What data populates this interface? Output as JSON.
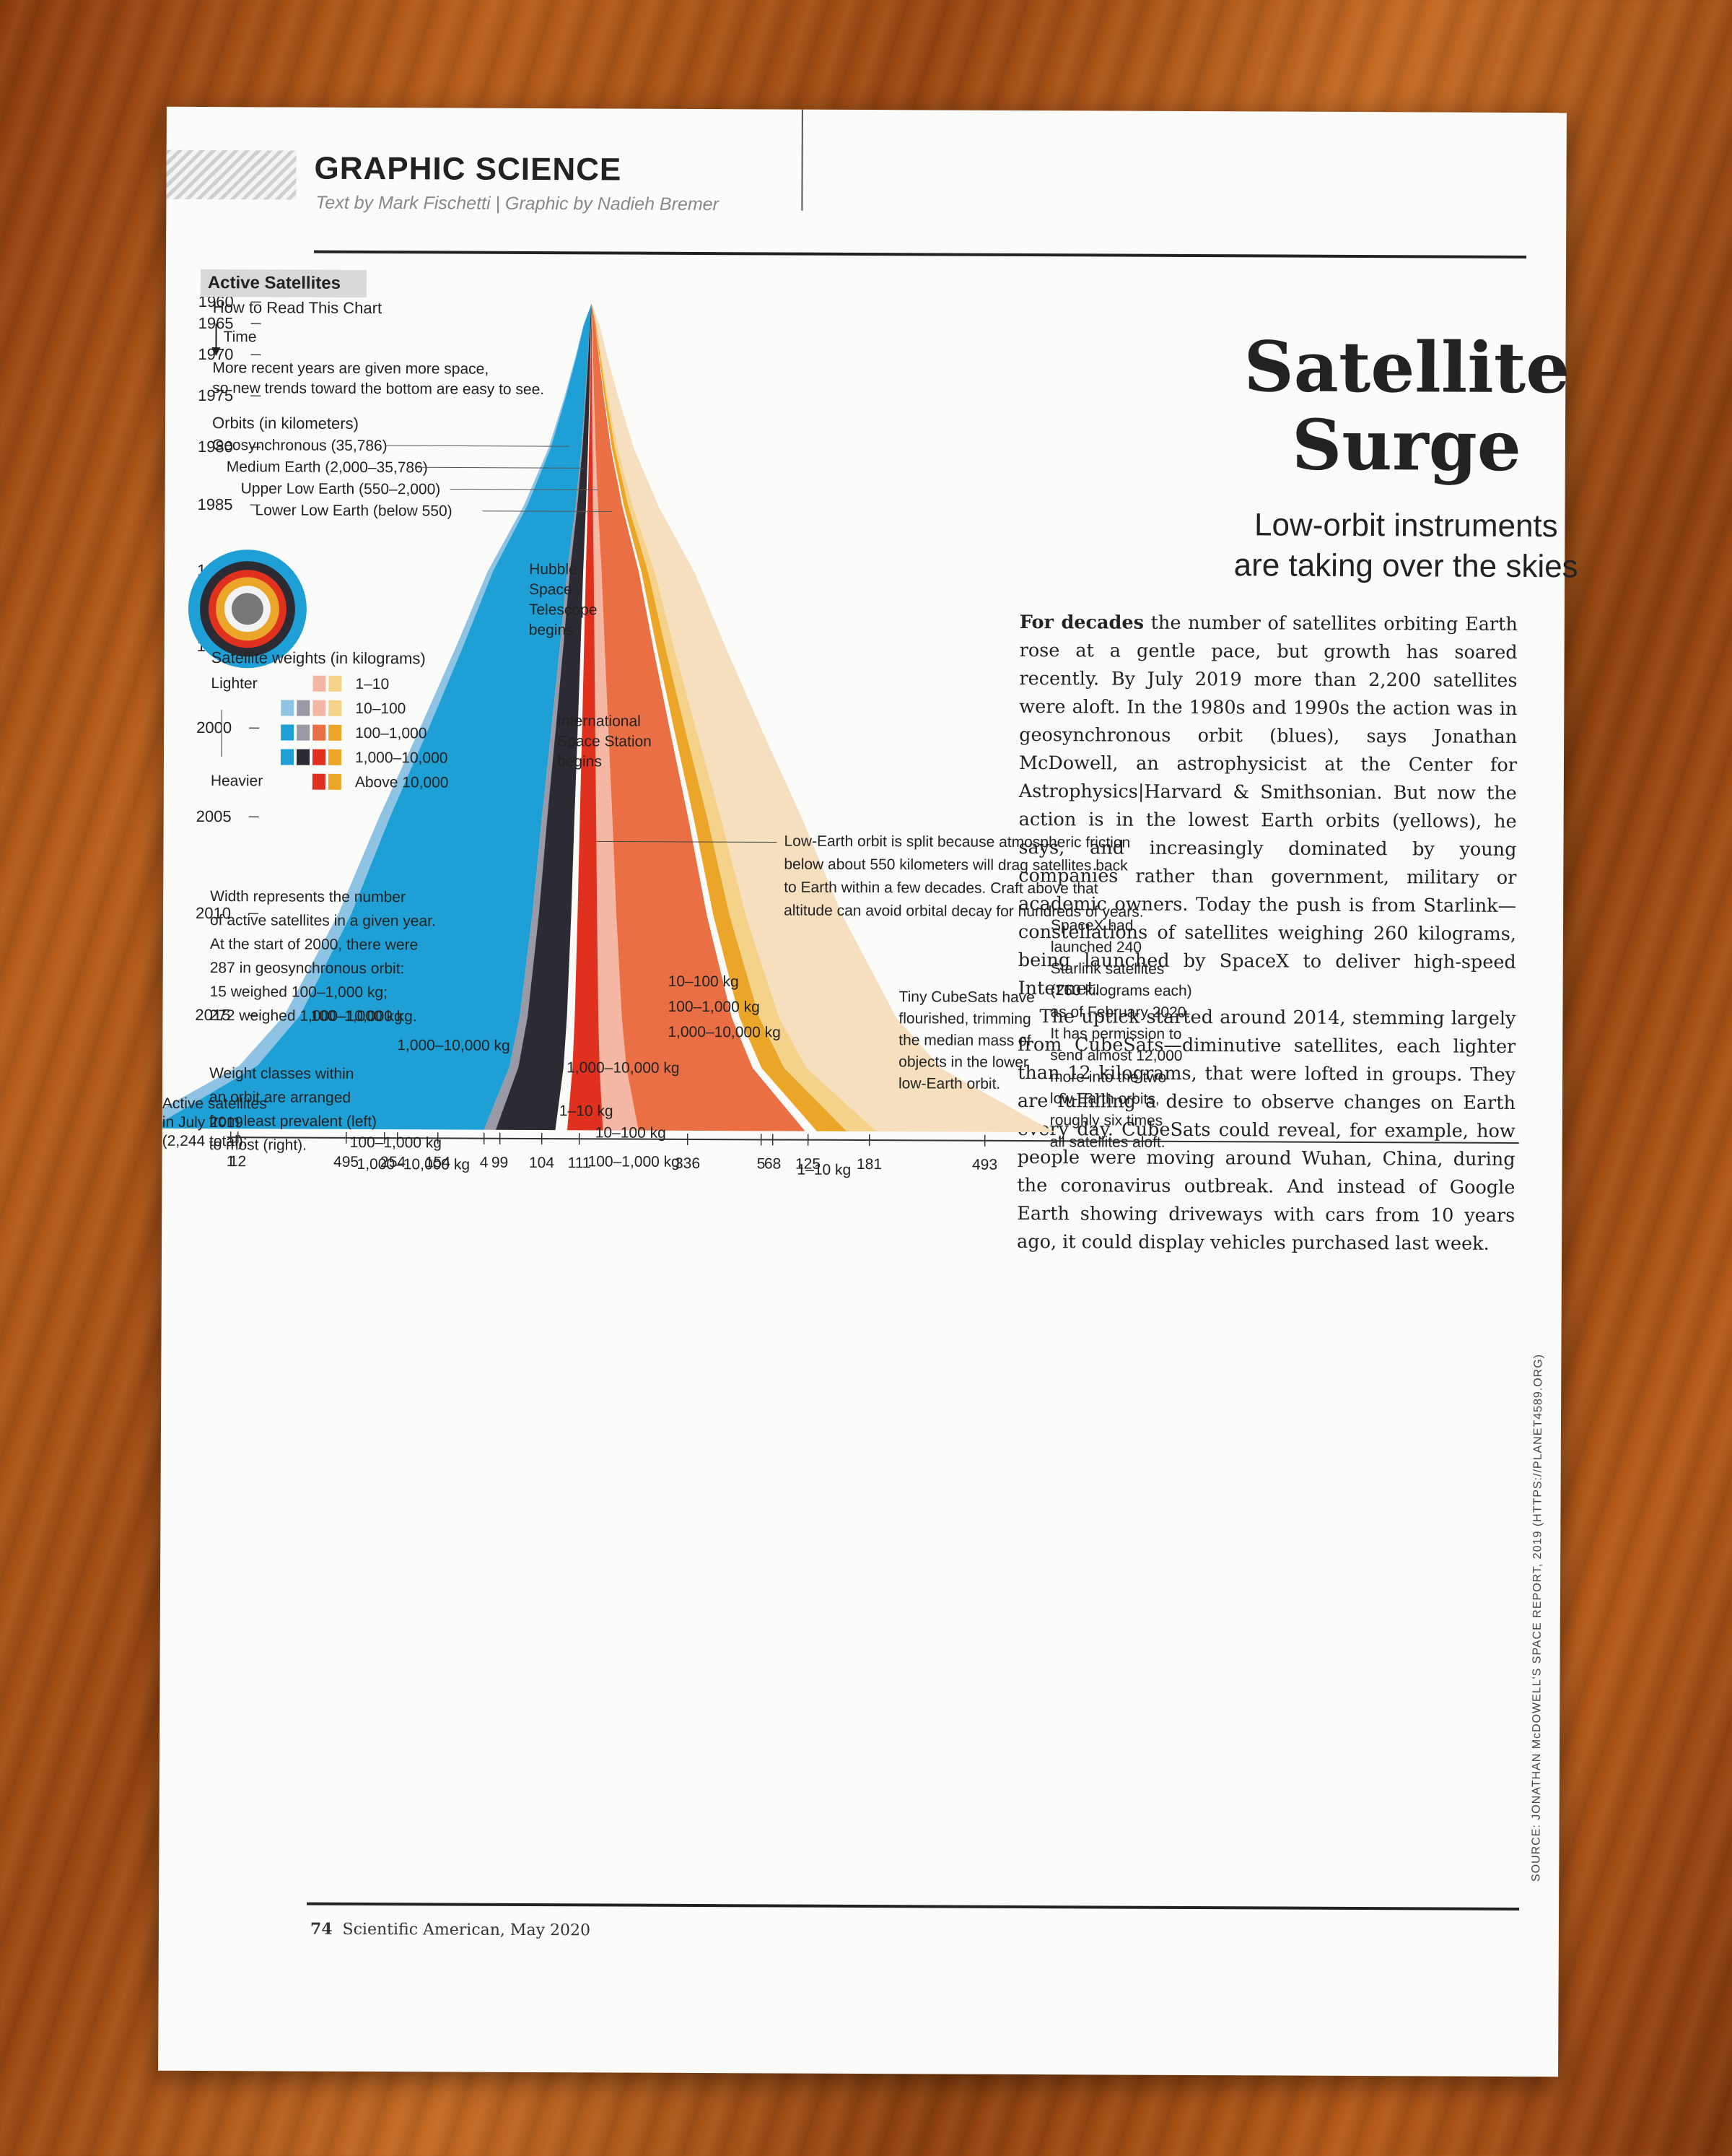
{
  "header": {
    "section": "GRAPHIC SCIENCE",
    "byline": "Text by Mark Fischetti | Graphic by Nadieh Bremer"
  },
  "title": {
    "headline_line1": "Satellite",
    "headline_line2": "Surge",
    "dek_line1": "Low-orbit instruments",
    "dek_line2": "are taking over the skies"
  },
  "body": {
    "lead": "For decades",
    "p1": " the number of satellites orbiting Earth rose at a gentle pace, but growth has soared recently. By July 2019 more than 2,200 satellites were aloft. In the 1980s and 1990s the action was in geosynchronous orbit (blues), says Jonathan McDowell, an astrophysicist at the Center for Astrophysics|Harvard & Smithsonian. But now the action is in the lowest Earth orbits (yellows), he says, and increasingly dominated by young companies rather than government, military or academic owners. Today the push is from Starlink—constellations of satellites weighing 260 kilograms, being launched by SpaceX to deliver high-speed Internet.",
    "p2": "The uptick started around 2014, stemming largely from CubeSats—diminutive satellites, each lighter than 12 kilograms, that were lofted in groups. They are fulfilling a desire to observe changes on Earth every day. CubeSats could reveal, for example, how people were moving around Wuhan, China, during the coronavirus outbreak. And instead of Google Earth showing driveways with cars from 10 years ago, it could display vehicles purchased last week."
  },
  "legend": {
    "tab": "Active Satellites",
    "how_to": "How to Read This Chart",
    "time": "Time",
    "recent_1": "More recent years are given more space,",
    "recent_2": "so new trends toward the bottom are easy to see.",
    "orbits_title": "Orbits (in kilometers)",
    "orbit_geo": "Geosynchronous (35,786)",
    "orbit_meo": "Medium Earth (2,000–35,786)",
    "orbit_ule": "Upper Low Earth (550–2,000)",
    "orbit_lle": "Lower Low Earth (below 550)",
    "weights_title": "Satellite weights (in kilograms)",
    "lighter": "Lighter",
    "heavier": "Heavier",
    "weight_classes": [
      "1–10",
      "10–100",
      "100–1,000",
      "1,000–10,000",
      "Above 10,000"
    ],
    "width_1": "Width represents the number",
    "width_2": "of active satellites in a given year.",
    "width_3": "At the start of 2000, there were",
    "width_4": "287 in geosynchronous orbit:",
    "width_5": "15 weighed 100–1,000 kg;",
    "width_6": "272 weighed 1,000–10,000 kg.",
    "order_1": "Weight classes within",
    "order_2": "an orbit are arranged",
    "order_3": "from least prevalent (left)",
    "order_4": "to most (right)."
  },
  "annotations": {
    "hubble": [
      "Hubble",
      "Space",
      "Telescope",
      "begins"
    ],
    "iss": [
      "International",
      "Space Station",
      "begins"
    ],
    "leo_split": [
      "Low-Earth orbit is split because atmospheric friction",
      "below about 550 kilometers will drag satellites back",
      "to Earth within a few decades. Craft above that",
      "altitude can avoid orbital decay for hundreds of years."
    ],
    "cubesat": [
      "Tiny CubeSats have",
      "flourished, trimming",
      "the median mass of",
      "objects in the lower",
      "low-Earth orbit."
    ],
    "spacex": [
      "SpaceX had",
      "launched 240",
      "Starlink satellites",
      "(260 kilograms each)",
      "as of February 2020.",
      "It has permission to",
      "send almost 12,000",
      "more into the two",
      "low-Earth orbits,",
      "roughly six times",
      "all satellites aloft."
    ],
    "total_1": "Active satellites",
    "total_2": "in July 2019",
    "total_3": "(2,244 total):"
  },
  "stream_labels": {
    "geo_mid": "100–1,000 kg",
    "geo_big": "1,000–10,000 kg",
    "meo_a": "100–1,000 kg",
    "meo_b": "1,000–10,000 kg",
    "ule_big": "1,000–10,000 kg",
    "ule_small": "1–10 kg",
    "ule_mid": "10–100 kg",
    "ule_large": "100–1,000 kg",
    "lle_a": "10–100 kg",
    "lle_b": "100–1,000 kg",
    "lle_c": "1,000–10,000 kg",
    "lle_small": "1–10 kg"
  },
  "footer": {
    "page": "74",
    "publication": "Scientific American, May 2020",
    "source": "SOURCE: JONATHAN McDOWELL'S SPACE REPORT, 2019 (HTTPS://PLANET4589.ORG)"
  },
  "colors": {
    "geo_light": "#8fc3e3",
    "geo_main": "#1ea0d6",
    "meo_light": "#9a9aa6",
    "meo_main": "#2c2a33",
    "ule_red": "#e0311f",
    "ule_light": "#f4b7a3",
    "ule_main": "#ea6f45",
    "lle_gold": "#eba62a",
    "lle_light": "#f5d28a",
    "lle_pale": "#f6dfbf"
  },
  "chart_data": {
    "type": "area",
    "title": "Active Satellites",
    "x": [
      1960,
      1965,
      1970,
      1975,
      1980,
      1985,
      1990,
      1995,
      2000,
      2005,
      2010,
      2015
    ],
    "series": [
      {
        "name": "Geosynchronous (35,786)",
        "values_july_2019": {
          "1–10": 1,
          "10–100": 12,
          "1,000–10,000": 495
        }
      },
      {
        "name": "Medium Earth (2,000–35,786)",
        "values_july_2019": {
          "10–100": 2,
          "100–1,000": 54,
          "1,000–10,000": 154
        }
      },
      {
        "name": "Upper Low Earth (550–2,000)",
        "values_july_2019": {
          "above 10,000": 4,
          "1–10": 99,
          "10–100": 104,
          "1,000–10,000": 111,
          "100–1,000": 336
        }
      },
      {
        "name": "Lower Low Earth (below 550)",
        "values_july_2019": {
          "above 10,000": 5,
          "1,000–10,000": 68,
          "10–100": 125,
          "100–1,000": 181,
          "1–10": 493
        }
      }
    ],
    "bottom_counts": [
      "1",
      "12",
      "495",
      "2",
      "54",
      "154",
      "4",
      "99",
      "104",
      "111",
      "336",
      "5",
      "68",
      "125",
      "181",
      "493"
    ],
    "geo_2000": {
      "100–1,000": 15,
      "1,000–10,000": 272,
      "total": 287
    },
    "total_july_2019": 2244,
    "ylabel": "",
    "xlabel": ""
  }
}
